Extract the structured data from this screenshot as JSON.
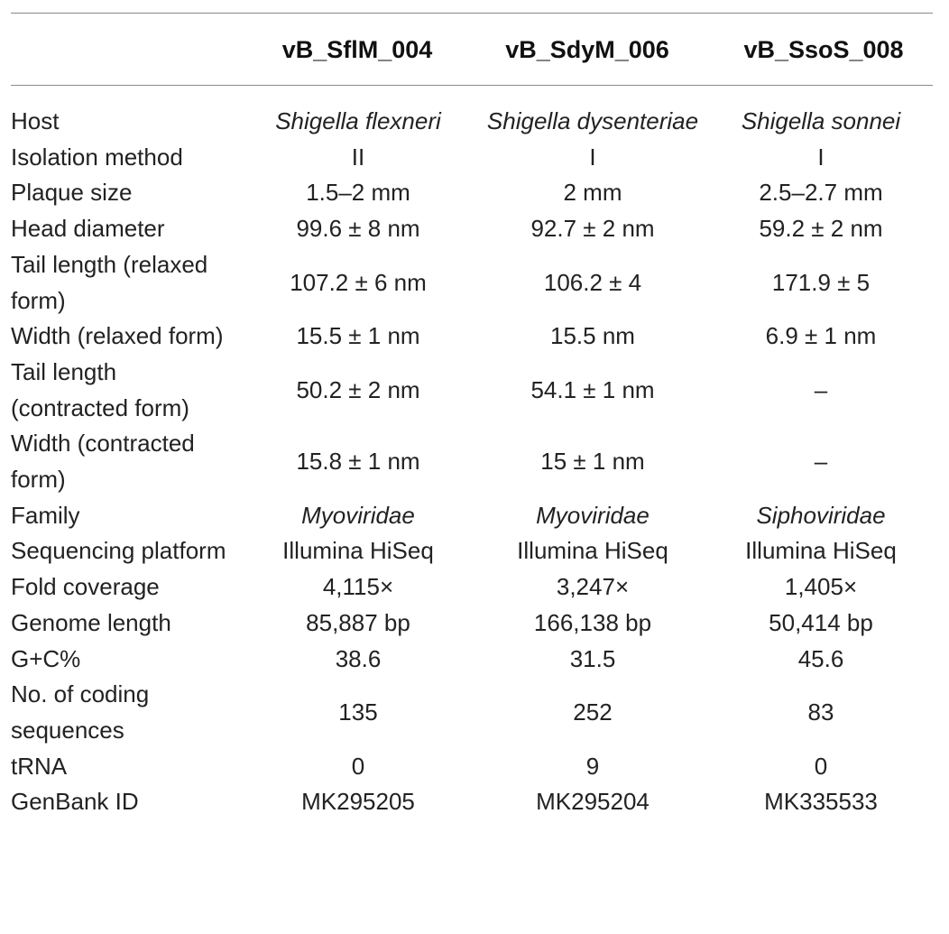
{
  "columns": [
    "vB_SflM_004",
    "vB_SdyM_006",
    "vB_SsoS_008"
  ],
  "rows": [
    {
      "label": "Host",
      "values": [
        "Shigella flexneri",
        "Shigella dysenteriae",
        "Shigella sonnei"
      ],
      "italic": true
    },
    {
      "label": "Isolation method",
      "values": [
        "II",
        "I",
        "I"
      ]
    },
    {
      "label": "Plaque size",
      "values": [
        "1.5–2 mm",
        "2 mm",
        "2.5–2.7 mm"
      ]
    },
    {
      "label": "Head diameter",
      "values": [
        "99.6 ± 8 nm",
        "92.7 ± 2 nm",
        "59.2 ± 2 nm"
      ]
    },
    {
      "label": "Tail length (relaxed form)",
      "values": [
        "107.2 ± 6 nm",
        "106.2 ± 4",
        "171.9 ± 5"
      ]
    },
    {
      "label": "Width (relaxed form)",
      "values": [
        "15.5 ± 1 nm",
        "15.5 nm",
        "6.9 ± 1 nm"
      ]
    },
    {
      "label": "Tail length (contracted form)",
      "values": [
        "50.2 ± 2 nm",
        "54.1 ± 1 nm",
        "–"
      ]
    },
    {
      "label": "Width (contracted form)",
      "values": [
        "15.8 ± 1 nm",
        "15 ± 1 nm",
        "–"
      ]
    },
    {
      "label": "Family",
      "values": [
        "Myoviridae",
        "Myoviridae",
        "Siphoviridae"
      ],
      "italic": true
    },
    {
      "label": "Sequencing platform",
      "values": [
        "Illumina HiSeq",
        "Illumina HiSeq",
        "Illumina HiSeq"
      ]
    },
    {
      "label": "Fold coverage",
      "values": [
        "4,115×",
        "3,247×",
        "1,405×"
      ]
    },
    {
      "label": "Genome length",
      "values": [
        "85,887 bp",
        "166,138 bp",
        "50,414 bp"
      ]
    },
    {
      "label": "G+C%",
      "values": [
        "38.6",
        "31.5",
        "45.6"
      ]
    },
    {
      "label": "No. of coding sequences",
      "values": [
        "135",
        "252",
        "83"
      ]
    },
    {
      "label": "tRNA",
      "values": [
        "0",
        "9",
        "0"
      ]
    },
    {
      "label": "GenBank ID",
      "values": [
        "MK295205",
        "MK295204",
        "MK335533"
      ]
    }
  ]
}
